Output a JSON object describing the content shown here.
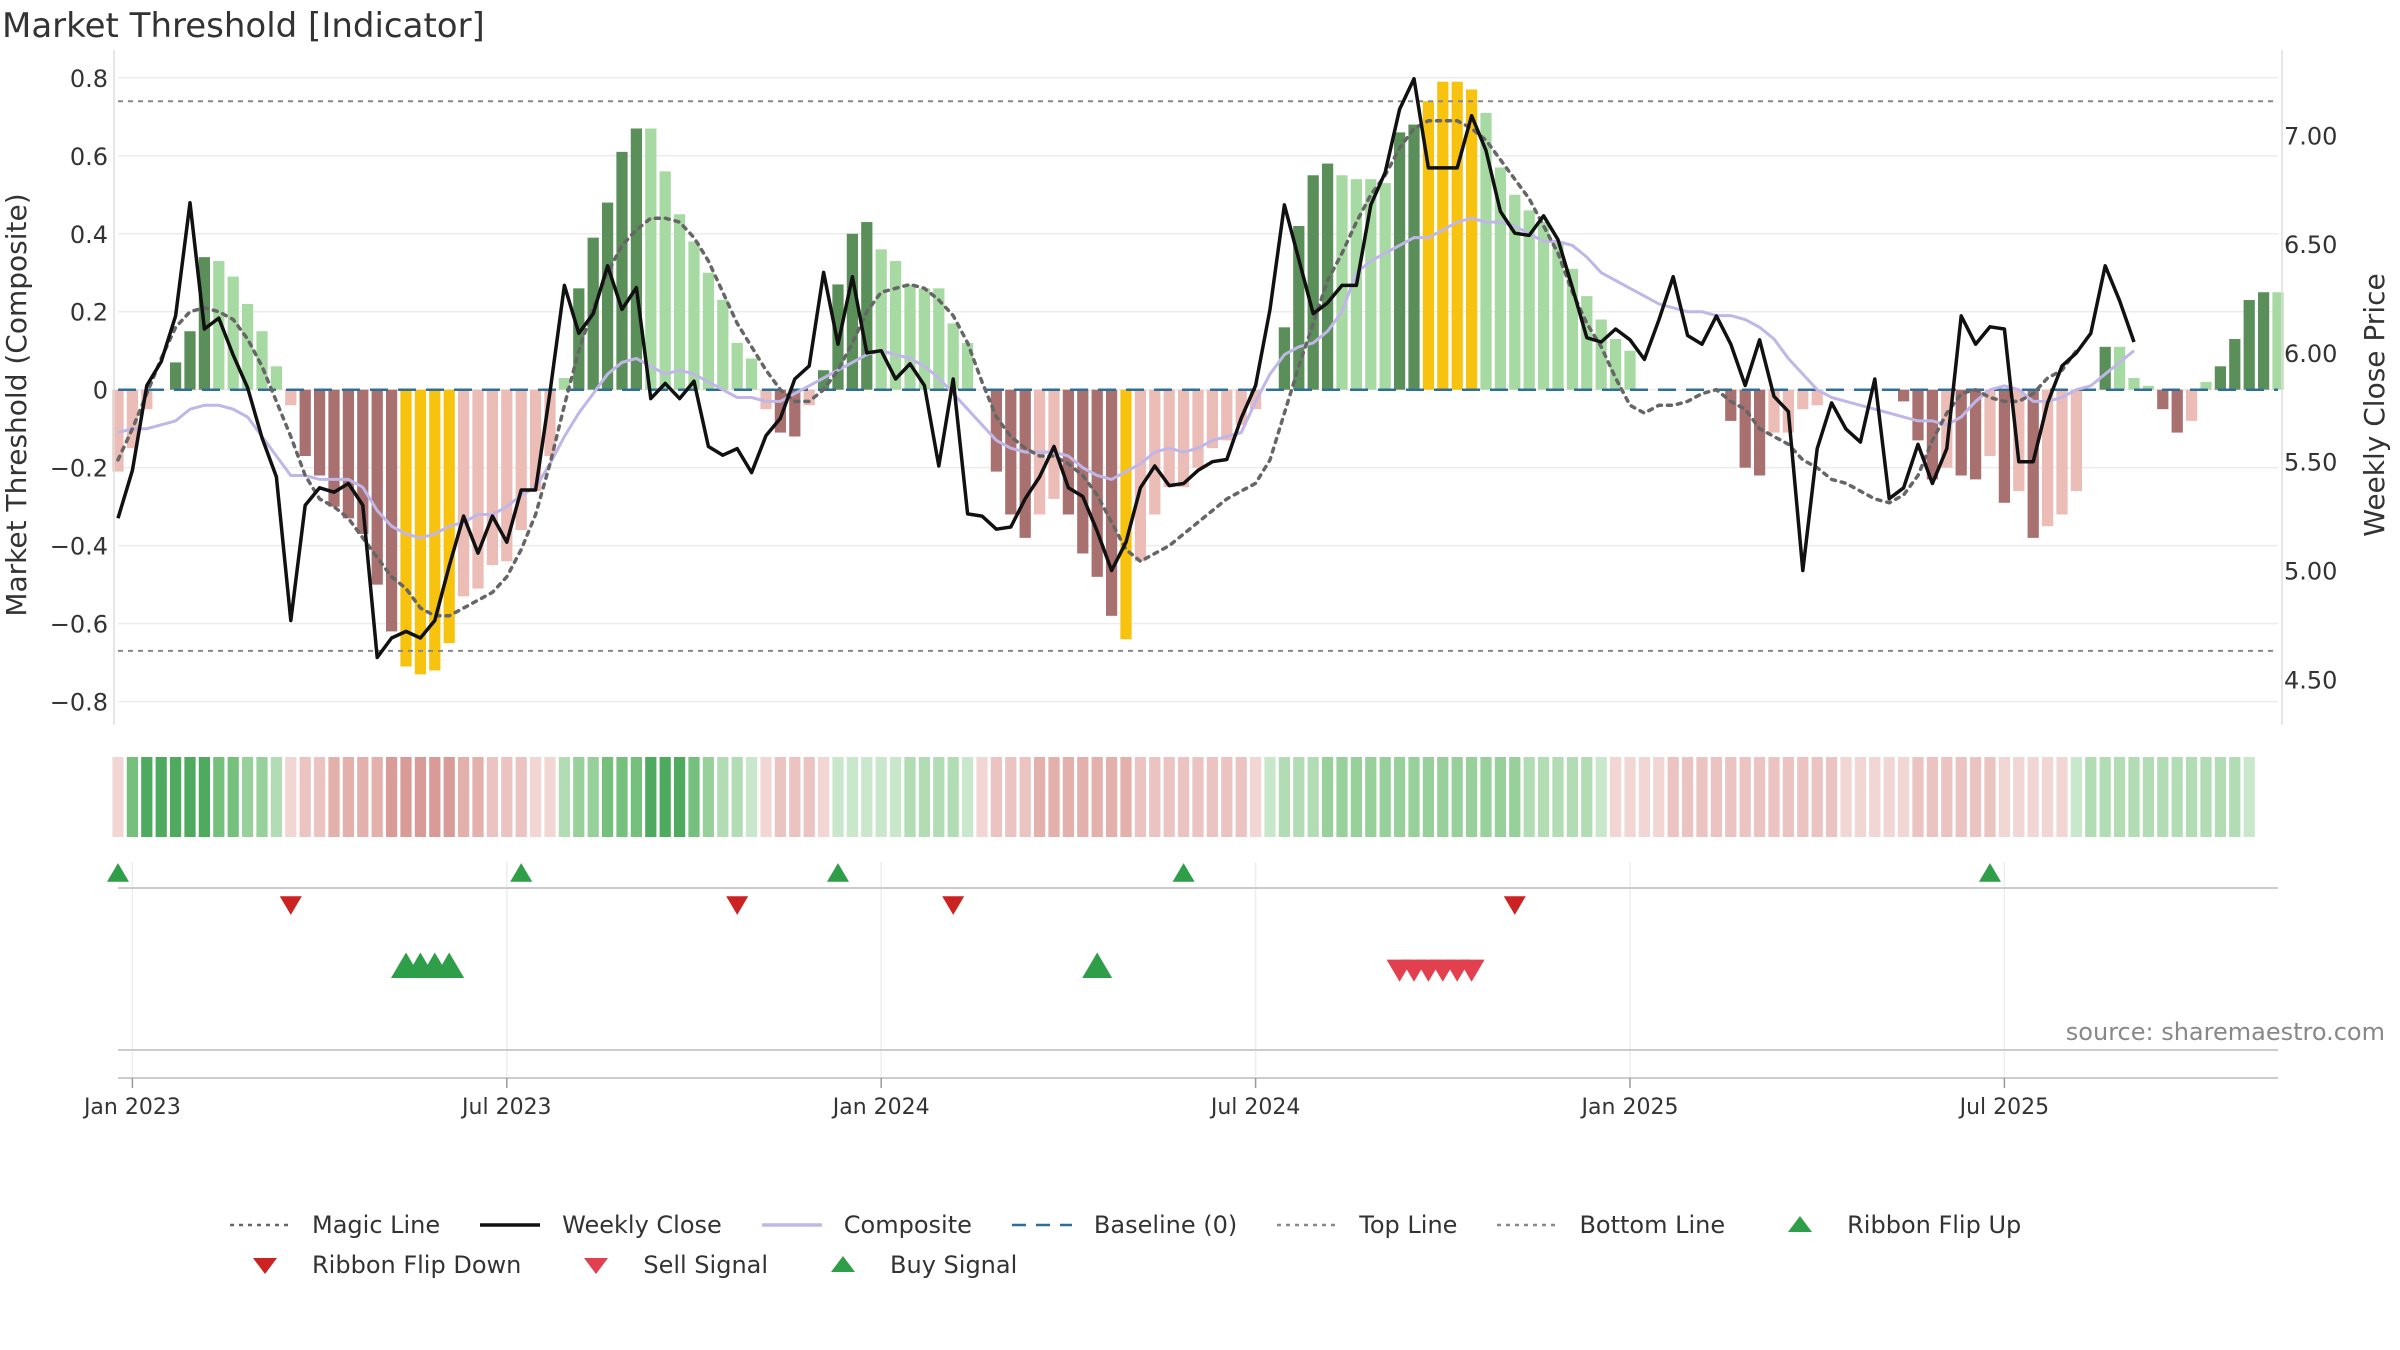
{
  "chart_data": {
    "type": "line",
    "title": "Market Threshold [Indicator]",
    "ylabel_left": "Market Threshold (Composite)",
    "ylabel_right": "Weekly Close Price",
    "source": "source: sharemaestro.com",
    "ylim_left": [
      -0.86,
      0.82
    ],
    "ylim_right": [
      4.29,
      7.3
    ],
    "left_ticks": [
      "0.8",
      "0.6",
      "0.4",
      "0.2",
      "0",
      "−0.2",
      "−0.4",
      "−0.6",
      "−0.8"
    ],
    "left_tick_values": [
      0.8,
      0.6,
      0.4,
      0.2,
      0,
      -0.2,
      -0.4,
      -0.6,
      -0.8
    ],
    "right_ticks": [
      "7.00",
      "6.50",
      "6.00",
      "5.50",
      "5.00",
      "4.50"
    ],
    "right_tick_values": [
      7.0,
      6.5,
      6.0,
      5.5,
      5.0,
      4.5
    ],
    "x_ticks": [
      "Jan 2023",
      "Jul 2023",
      "Jan 2024",
      "Jul 2024",
      "Jan 2025",
      "Jul 2025"
    ],
    "x_tick_weeks": [
      1,
      27,
      53,
      79,
      105,
      131
    ],
    "x_start": "2022-12-26",
    "x_step_days": 7,
    "top_line": 0.74,
    "bottom_line": -0.67,
    "weekly_close": [
      5.24,
      5.46,
      5.85,
      5.96,
      6.17,
      6.69,
      6.11,
      6.16,
      5.99,
      5.84,
      5.61,
      5.43,
      4.77,
      5.3,
      5.38,
      5.36,
      5.4,
      5.3,
      4.6,
      4.69,
      4.72,
      4.69,
      4.77,
      5.02,
      5.25,
      5.08,
      5.25,
      5.13,
      5.37,
      5.37,
      5.82,
      6.31,
      6.09,
      6.18,
      6.4,
      6.2,
      6.3,
      5.79,
      5.86,
      5.79,
      5.87,
      5.57,
      5.53,
      5.56,
      5.45,
      5.62,
      5.7,
      5.88,
      5.94,
      6.37,
      6.04,
      6.35,
      6.0,
      6.01,
      5.88,
      5.95,
      5.85,
      5.48,
      5.88,
      5.26,
      5.25,
      5.19,
      5.2,
      5.33,
      5.43,
      5.57,
      5.38,
      5.34,
      5.18,
      5.0,
      5.13,
      5.38,
      5.48,
      5.39,
      5.4,
      5.46,
      5.5,
      5.51,
      5.7,
      5.85,
      6.2,
      6.68,
      6.43,
      6.18,
      6.23,
      6.31,
      6.31,
      6.68,
      6.83,
      7.12,
      7.26,
      6.85,
      6.85,
      6.85,
      7.09,
      6.93,
      6.65,
      6.55,
      6.54,
      6.63,
      6.52,
      6.3,
      6.07,
      6.05,
      6.11,
      6.06,
      5.97,
      6.15,
      6.35,
      6.08,
      6.04,
      6.17,
      6.04,
      5.85,
      6.06,
      5.8,
      5.73,
      5.0,
      5.56,
      5.77,
      5.65,
      5.59,
      5.88,
      5.33,
      5.38,
      5.58,
      5.4,
      5.56,
      6.17,
      6.04,
      6.12,
      6.11,
      5.5,
      5.5,
      5.77,
      5.94,
      6.0,
      6.09,
      6.4,
      6.24,
      6.05
    ],
    "composite": [
      -0.11,
      -0.1,
      -0.1,
      -0.09,
      -0.08,
      -0.05,
      -0.04,
      -0.04,
      -0.05,
      -0.07,
      -0.12,
      -0.17,
      -0.22,
      -0.22,
      -0.23,
      -0.23,
      -0.23,
      -0.25,
      -0.31,
      -0.35,
      -0.37,
      -0.38,
      -0.37,
      -0.35,
      -0.34,
      -0.32,
      -0.32,
      -0.3,
      -0.27,
      -0.25,
      -0.19,
      -0.12,
      -0.06,
      -0.01,
      0.04,
      0.07,
      0.08,
      0.06,
      0.04,
      0.05,
      0.04,
      0.02,
      0.0,
      -0.02,
      -0.02,
      -0.03,
      -0.03,
      -0.01,
      0.01,
      0.03,
      0.05,
      0.07,
      0.09,
      0.1,
      0.09,
      0.08,
      0.06,
      0.03,
      -0.01,
      -0.05,
      -0.09,
      -0.13,
      -0.15,
      -0.16,
      -0.16,
      -0.16,
      -0.17,
      -0.2,
      -0.22,
      -0.23,
      -0.21,
      -0.19,
      -0.16,
      -0.15,
      -0.16,
      -0.15,
      -0.13,
      -0.12,
      -0.11,
      -0.03,
      0.04,
      0.09,
      0.11,
      0.12,
      0.15,
      0.2,
      0.3,
      0.33,
      0.35,
      0.37,
      0.39,
      0.39,
      0.41,
      0.43,
      0.44,
      0.43,
      0.43,
      0.42,
      0.4,
      0.38,
      0.38,
      0.37,
      0.34,
      0.3,
      0.28,
      0.26,
      0.24,
      0.22,
      0.21,
      0.2,
      0.2,
      0.19,
      0.19,
      0.18,
      0.16,
      0.13,
      0.08,
      0.04,
      0.0,
      -0.02,
      -0.03,
      -0.04,
      -0.05,
      -0.06,
      -0.07,
      -0.08,
      -0.08,
      -0.09,
      -0.07,
      -0.03,
      0.0,
      0.01,
      0.0,
      -0.03,
      -0.03,
      -0.02,
      0.0,
      0.01,
      0.04,
      0.07,
      0.1
    ],
    "composite_bars": [
      -0.21,
      -0.15,
      -0.05,
      0.0,
      0.07,
      0.15,
      0.34,
      0.33,
      0.29,
      0.22,
      0.15,
      0.06,
      -0.04,
      -0.17,
      -0.22,
      -0.3,
      -0.33,
      -0.37,
      -0.5,
      -0.62,
      -0.71,
      -0.73,
      -0.72,
      -0.65,
      -0.53,
      -0.51,
      -0.45,
      -0.44,
      -0.36,
      -0.26,
      -0.17,
      0.03,
      0.26,
      0.39,
      0.48,
      0.61,
      0.67,
      0.67,
      0.56,
      0.45,
      0.38,
      0.3,
      0.23,
      0.12,
      0.08,
      -0.05,
      -0.11,
      -0.12,
      -0.04,
      0.05,
      0.27,
      0.4,
      0.43,
      0.36,
      0.33,
      0.27,
      0.26,
      0.26,
      0.17,
      0.12,
      0.0,
      -0.21,
      -0.32,
      -0.38,
      -0.32,
      -0.28,
      -0.32,
      -0.42,
      -0.48,
      -0.58,
      -0.64,
      -0.44,
      -0.32,
      -0.25,
      -0.25,
      -0.2,
      -0.15,
      -0.13,
      -0.09,
      -0.05,
      0.0,
      0.16,
      0.42,
      0.55,
      0.58,
      0.55,
      0.54,
      0.54,
      0.53,
      0.66,
      0.68,
      0.74,
      0.79,
      0.79,
      0.77,
      0.71,
      0.57,
      0.5,
      0.46,
      0.43,
      0.38,
      0.31,
      0.24,
      0.18,
      0.13,
      0.1,
      0.0,
      0.0,
      0.0,
      0.0,
      0.0,
      0.0,
      -0.08,
      -0.2,
      -0.22,
      -0.11,
      -0.11,
      -0.05,
      -0.04,
      0.0,
      0.0,
      0.0,
      0.0,
      0.0,
      -0.03,
      -0.13,
      -0.23,
      -0.2,
      -0.22,
      -0.23,
      -0.17,
      -0.29,
      -0.26,
      -0.38,
      -0.35,
      -0.32,
      -0.26,
      0.0,
      0.11,
      0.11,
      0.03,
      0.01,
      -0.05,
      -0.11,
      -0.08,
      0.02,
      0.06,
      0.13,
      0.23,
      0.25,
      0.25
    ],
    "magic_line": [
      -0.18,
      -0.1,
      -0.01,
      0.08,
      0.16,
      0.2,
      0.21,
      0.2,
      0.18,
      0.13,
      0.06,
      -0.03,
      -0.12,
      -0.22,
      -0.28,
      -0.3,
      -0.33,
      -0.38,
      -0.43,
      -0.48,
      -0.51,
      -0.56,
      -0.58,
      -0.58,
      -0.56,
      -0.54,
      -0.52,
      -0.48,
      -0.41,
      -0.32,
      -0.19,
      -0.04,
      0.1,
      0.21,
      0.3,
      0.37,
      0.41,
      0.44,
      0.44,
      0.43,
      0.39,
      0.33,
      0.25,
      0.17,
      0.11,
      0.05,
      0.0,
      -0.03,
      -0.03,
      0.0,
      0.05,
      0.12,
      0.2,
      0.25,
      0.26,
      0.27,
      0.26,
      0.23,
      0.19,
      0.12,
      0.02,
      -0.07,
      -0.12,
      -0.15,
      -0.17,
      -0.17,
      -0.19,
      -0.22,
      -0.27,
      -0.34,
      -0.41,
      -0.44,
      -0.42,
      -0.4,
      -0.37,
      -0.34,
      -0.31,
      -0.28,
      -0.26,
      -0.24,
      -0.18,
      -0.06,
      0.06,
      0.17,
      0.28,
      0.35,
      0.43,
      0.5,
      0.55,
      0.62,
      0.67,
      0.69,
      0.69,
      0.69,
      0.67,
      0.64,
      0.59,
      0.54,
      0.49,
      0.42,
      0.35,
      0.25,
      0.17,
      0.11,
      0.03,
      -0.04,
      -0.06,
      -0.04,
      -0.04,
      -0.03,
      -0.01,
      0.0,
      -0.03,
      -0.05,
      -0.1,
      -0.12,
      -0.14,
      -0.18,
      -0.2,
      -0.23,
      -0.24,
      -0.26,
      -0.28,
      -0.29,
      -0.27,
      -0.22,
      -0.13,
      -0.06,
      -0.01,
      0.0,
      -0.02,
      -0.03,
      -0.03,
      -0.01,
      0.03,
      0.05,
      0.1
    ],
    "ribbon": [
      -1,
      4,
      5,
      5,
      5,
      5,
      5,
      4,
      4,
      3,
      3,
      2,
      -1,
      -2,
      -2,
      -3,
      -3,
      -3,
      -3,
      -4,
      -4,
      -4,
      -4,
      -4,
      -3,
      -3,
      -2,
      -2,
      -2,
      -1,
      -1,
      2,
      3,
      3,
      4,
      4,
      4,
      5,
      5,
      5,
      4,
      3,
      2,
      2,
      1,
      -1,
      -2,
      -2,
      -2,
      -1,
      1,
      1,
      1,
      1,
      1,
      2,
      2,
      2,
      2,
      1,
      -1,
      -2,
      -2,
      -2,
      -3,
      -3,
      -3,
      -3,
      -3,
      -3,
      -3,
      -2,
      -2,
      -2,
      -2,
      -2,
      -2,
      -2,
      -2,
      -1,
      1,
      2,
      2,
      2,
      3,
      3,
      3,
      3,
      3,
      3,
      3,
      3,
      3,
      3,
      3,
      3,
      3,
      3,
      2,
      2,
      2,
      2,
      2,
      1,
      -1,
      -1,
      -1,
      -1,
      -2,
      -2,
      -2,
      -2,
      -2,
      -2,
      -2,
      -2,
      -2,
      -2,
      -2,
      -2,
      -1,
      -1,
      -1,
      -1,
      -1,
      -2,
      -2,
      -2,
      -2,
      -2,
      -2,
      -1,
      -1,
      -1,
      -1,
      -1,
      1,
      2,
      2,
      2,
      2,
      2,
      2,
      2,
      2,
      2,
      2,
      2,
      1
    ],
    "ribbon_flip_up_weeks": [
      0,
      28,
      50,
      74,
      130
    ],
    "ribbon_flip_down_weeks": [
      12,
      43,
      58,
      97
    ],
    "buy_signal_weeks": [
      20,
      21,
      22,
      23,
      68
    ],
    "sell_signal_weeks": [
      89,
      90,
      91,
      92,
      93,
      94
    ],
    "legend": [
      {
        "name": "Magic Line",
        "style": "dotted",
        "color": "#666666"
      },
      {
        "name": "Weekly Close",
        "style": "solid",
        "color": "#111111"
      },
      {
        "name": "Composite",
        "style": "solid",
        "color": "#c0b6e8"
      },
      {
        "name": "Baseline (0)",
        "style": "dashed",
        "color": "#2f6f95"
      },
      {
        "name": "Top Line",
        "style": "dotted",
        "color": "#888888"
      },
      {
        "name": "Bottom Line",
        "style": "dotted",
        "color": "#888888"
      },
      {
        "name": "Ribbon Flip Up",
        "style": "tri-up",
        "color": "#2e9e49"
      },
      {
        "name": "Ribbon Flip Down",
        "style": "tri-down",
        "color": "#cc2222"
      },
      {
        "name": "Sell Signal",
        "style": "tri-down",
        "color": "#e2404f"
      },
      {
        "name": "Buy Signal",
        "style": "tri-up",
        "color": "#2e9e49"
      }
    ],
    "colors": {
      "bar_pos_strong": "#5a8f5a",
      "bar_pos_weak": "#a7d9a2",
      "bar_neg_strong": "#a8706e",
      "bar_neg_weak": "#ecbcb6",
      "bar_extreme": "#f8c30f",
      "baseline": "#2f6f95",
      "grid": "#ececec"
    }
  }
}
